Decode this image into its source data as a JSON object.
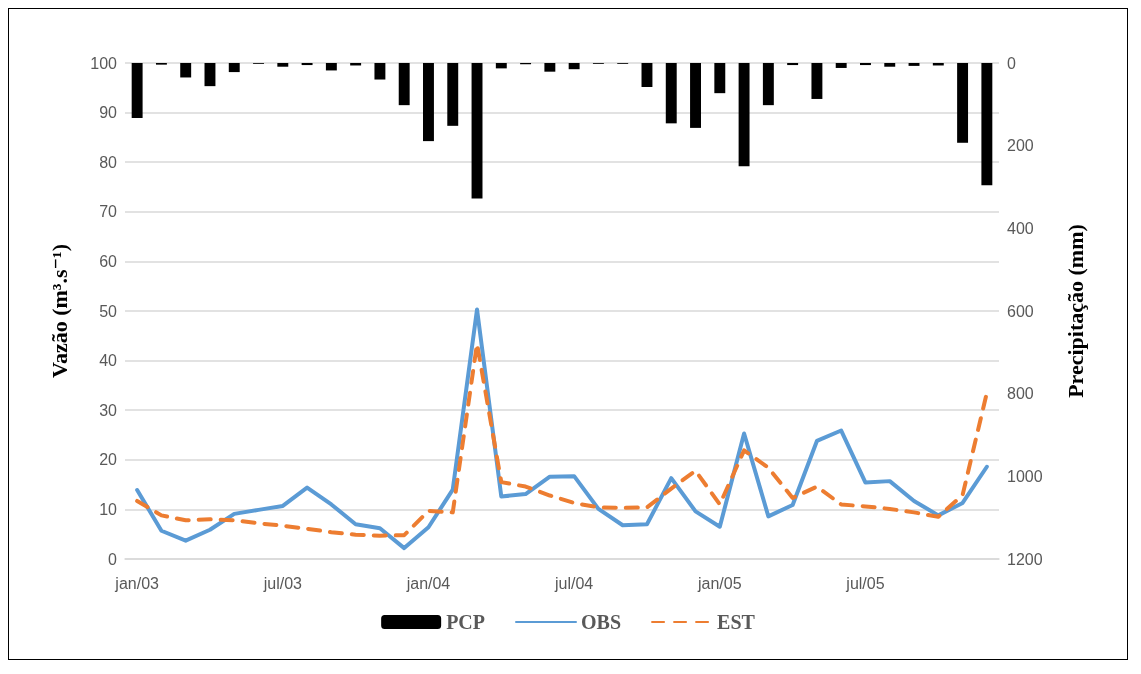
{
  "chart_data": {
    "type": "line",
    "ylabel": "Vazão (m³.s⁻¹)",
    "y2label": "Precipitação (mm)",
    "categories": [
      "jan/03",
      null,
      null,
      null,
      null,
      null,
      "jul/03",
      null,
      null,
      null,
      null,
      null,
      "jan/04",
      null,
      null,
      null,
      null,
      null,
      "jul/04",
      null,
      null,
      null,
      null,
      null,
      "jan/05",
      null,
      null,
      null,
      null,
      null,
      "jul/05",
      null,
      null,
      null,
      null,
      null
    ],
    "series": [
      {
        "name": "PCP",
        "type": "bar",
        "axis": "y2",
        "color": "#000000",
        "values": [
          133,
          4,
          35,
          56,
          22,
          2,
          9,
          5,
          18,
          6,
          40,
          102,
          189,
          152,
          328,
          13,
          3,
          21,
          15,
          2,
          2,
          58,
          146,
          157,
          73,
          250,
          102,
          5,
          87,
          12,
          5,
          9,
          7,
          6,
          193,
          296
        ]
      },
      {
        "name": "OBS",
        "color": "#5b9bd5",
        "line_style": "solid",
        "values": [
          13.9,
          5.7,
          3.7,
          5.9,
          9.1,
          9.9,
          10.7,
          14.4,
          11.0,
          7.0,
          6.2,
          2.2,
          6.4,
          14.0,
          50.3,
          12.6,
          13.1,
          16.6,
          16.7,
          10.1,
          6.8,
          7.0,
          16.3,
          9.6,
          6.5,
          25.3,
          8.6,
          10.9,
          23.8,
          25.9,
          15.4,
          15.7,
          11.7,
          8.8,
          11.3,
          18.6
        ]
      },
      {
        "name": "EST",
        "color": "#ed7d31",
        "line_style": "dashed",
        "values": [
          11.7,
          8.8,
          7.8,
          8.0,
          7.8,
          7.2,
          6.7,
          6.1,
          5.4,
          4.9,
          4.7,
          4.8,
          9.7,
          9.4,
          43.4,
          15.5,
          14.6,
          12.8,
          11.3,
          10.4,
          10.3,
          10.4,
          14.2,
          17.8,
          11.0,
          21.9,
          18.4,
          12.3,
          14.6,
          11.0,
          10.6,
          10.1,
          9.4,
          8.5,
          12.9,
          33.5
        ]
      }
    ],
    "ylim": [
      0,
      100
    ],
    "yticks": [
      0,
      10,
      20,
      30,
      40,
      50,
      60,
      70,
      80,
      90,
      100
    ],
    "y2lim": [
      1200,
      0
    ],
    "y2ticks": [
      0,
      200,
      400,
      600,
      800,
      1000,
      1200
    ],
    "grid": "y",
    "legend": "bottom",
    "marker": "none"
  }
}
